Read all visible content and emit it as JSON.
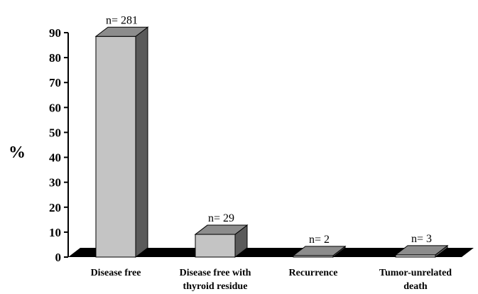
{
  "chart_data": {
    "type": "bar",
    "categories": [
      [
        "Disease free"
      ],
      [
        "Disease free with",
        "thyroid residue"
      ],
      [
        "Recurrence"
      ],
      [
        "Tumor-unrelated",
        "death"
      ]
    ],
    "values": [
      88.5,
      9.1,
      0.6,
      0.9
    ],
    "data_labels": [
      "n= 281",
      "n= 29",
      "n= 2",
      "n= 3"
    ],
    "ylabel": "%",
    "ylim": [
      0,
      90
    ],
    "yticks": [
      "0",
      "10",
      "20",
      "30",
      "40",
      "50",
      "60",
      "70",
      "80",
      "90"
    ],
    "grid": false,
    "colors": {
      "front": "#c4c4c4",
      "top": "#8c8c8c",
      "side": "#5a5a5a",
      "floor": "#000000",
      "stroke": "#000000"
    }
  }
}
